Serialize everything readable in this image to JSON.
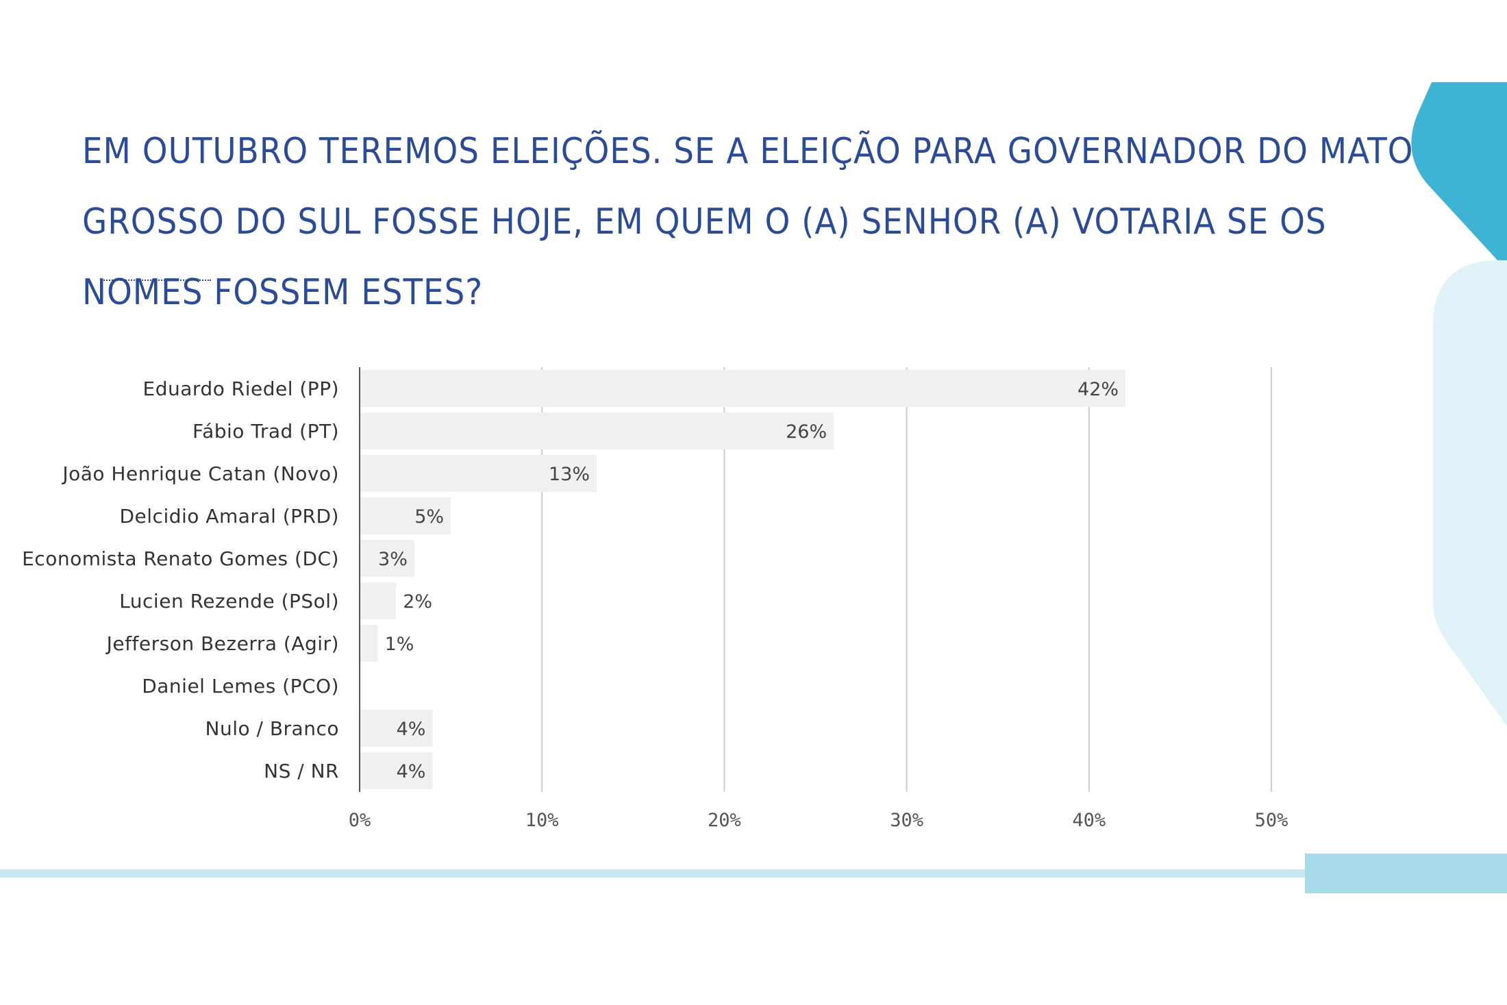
{
  "title": "EM OUTUBRO TEREMOS ELEIÇÕES. SE A ELEIÇÃO PARA GOVERNADOR DO MATO GROSSO DO SUL FOSSE HOJE, EM QUEM O (A) SENHOR (A) VOTARIA SE OS NOMES FOSSEM ESTES?",
  "colors": {
    "title": "#2a4a9c",
    "bar": "#eef0f2",
    "grid": "#cccccc",
    "accent_dark": "#3fb3d3",
    "accent_light": "#dff2f8",
    "footer_line": "#c9e7f1"
  },
  "chart_data": {
    "type": "bar",
    "orientation": "horizontal",
    "categories": [
      "Eduardo Riedel (PP)",
      "Fábio Trad (PT)",
      "João Henrique Catan (Novo)",
      "Delcidio Amaral (PRD)",
      "Economista Renato Gomes (DC)",
      "Lucien Rezende (PSol)",
      "Jefferson Bezerra (Agir)",
      "Daniel Lemes (PCO)",
      "Nulo / Branco",
      "NS / NR"
    ],
    "values": [
      42,
      26,
      13,
      5,
      3,
      2,
      1,
      0,
      4,
      4
    ],
    "value_labels": [
      "42%",
      "26%",
      "13%",
      "5%",
      "3%",
      "2%",
      "1%",
      "",
      "4%",
      "4%"
    ],
    "xlim": [
      0,
      50
    ],
    "ticks": [
      0,
      10,
      20,
      30,
      40,
      50
    ],
    "tick_labels": [
      "0%",
      "10%",
      "20%",
      "30%",
      "40%",
      "50%"
    ],
    "grid": true
  }
}
